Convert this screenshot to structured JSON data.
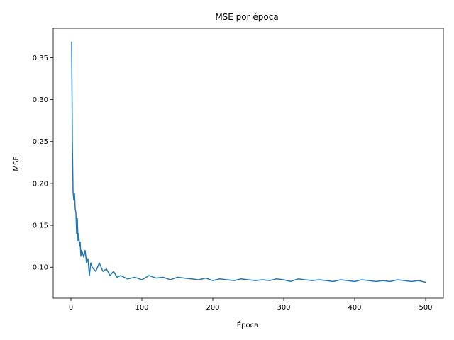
{
  "chart_data": {
    "type": "line",
    "title": "MSE por época",
    "xlabel": "Época",
    "ylabel": "MSE",
    "xlim": [
      -25,
      525
    ],
    "ylim": [
      0.063,
      0.385
    ],
    "xticks": [
      0,
      100,
      200,
      300,
      400,
      500
    ],
    "yticks": [
      0.1,
      0.15,
      0.2,
      0.25,
      0.3,
      0.35
    ],
    "ytick_labels": [
      "0.10",
      "0.15",
      "0.20",
      "0.25",
      "0.30",
      "0.35"
    ],
    "grid": false,
    "series": [
      {
        "color": "#1f77b4",
        "x": [
          1,
          2,
          3,
          4,
          5,
          6,
          7,
          8,
          9,
          10,
          11,
          12,
          13,
          14,
          15,
          16,
          18,
          20,
          22,
          24,
          26,
          28,
          30,
          35,
          40,
          45,
          50,
          55,
          60,
          65,
          70,
          80,
          90,
          100,
          110,
          120,
          130,
          140,
          150,
          160,
          170,
          180,
          190,
          200,
          210,
          220,
          230,
          240,
          250,
          260,
          270,
          280,
          290,
          300,
          310,
          320,
          330,
          340,
          350,
          360,
          370,
          380,
          390,
          400,
          410,
          420,
          430,
          440,
          450,
          460,
          470,
          480,
          490,
          500
        ],
        "y": [
          0.369,
          0.25,
          0.19,
          0.18,
          0.188,
          0.17,
          0.165,
          0.14,
          0.158,
          0.132,
          0.14,
          0.125,
          0.13,
          0.113,
          0.12,
          0.118,
          0.112,
          0.12,
          0.105,
          0.11,
          0.09,
          0.105,
          0.1,
          0.095,
          0.105,
          0.095,
          0.098,
          0.09,
          0.095,
          0.088,
          0.09,
          0.086,
          0.088,
          0.085,
          0.09,
          0.087,
          0.088,
          0.085,
          0.088,
          0.087,
          0.086,
          0.085,
          0.087,
          0.084,
          0.086,
          0.085,
          0.084,
          0.086,
          0.085,
          0.084,
          0.085,
          0.084,
          0.086,
          0.085,
          0.083,
          0.086,
          0.085,
          0.084,
          0.085,
          0.084,
          0.083,
          0.085,
          0.084,
          0.083,
          0.085,
          0.084,
          0.083,
          0.084,
          0.083,
          0.085,
          0.084,
          0.083,
          0.084,
          0.082
        ]
      }
    ]
  }
}
